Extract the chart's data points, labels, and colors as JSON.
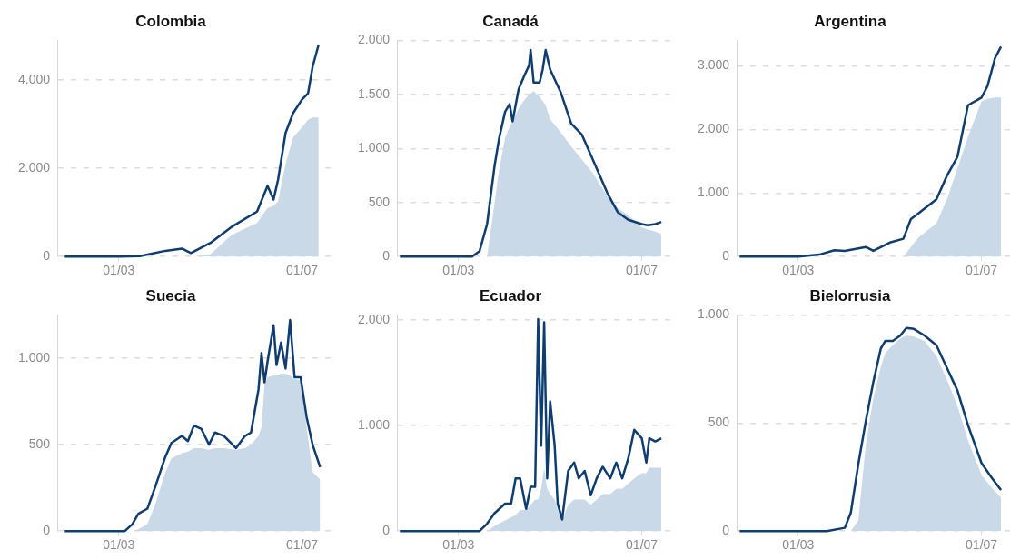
{
  "chart_data": [
    {
      "type": "line",
      "title": "Colombia",
      "x": [
        "--01-25",
        "--03-01",
        "--03-15",
        "--04-01",
        "--04-12",
        "--04-18",
        "--05-01",
        "--05-15",
        "--06-01",
        "--06-08",
        "--06-12",
        "--06-15",
        "--06-20",
        "--06-25",
        "--07-01",
        "--07-05",
        "--07-08",
        "--07-12"
      ],
      "series": [
        {
          "type": "area",
          "color": "#c9d9e8",
          "values": [
            0,
            0,
            0,
            0,
            0,
            0,
            50,
            490,
            760,
            1100,
            1150,
            1250,
            2100,
            2700,
            2930,
            3100,
            3150,
            3150
          ]
        },
        {
          "type": "line",
          "color": "#0f3d70",
          "values": [
            0,
            0,
            10,
            130,
            180,
            80,
            310,
            670,
            1020,
            1600,
            1290,
            1740,
            2800,
            3250,
            3560,
            3700,
            4300,
            4800
          ]
        }
      ],
      "xlim": [
        "--01-20",
        "--07-20"
      ],
      "xticks": [
        {
          "value": "--03-01",
          "label": "01/03"
        },
        {
          "value": "--07-01",
          "label": "01/07"
        }
      ],
      "ylim": [
        0,
        4900
      ],
      "yticks": [
        {
          "value": 0,
          "label": "0"
        },
        {
          "value": 2000,
          "label": "2.000"
        },
        {
          "value": 4000,
          "label": "4.000"
        }
      ],
      "grid": "y",
      "legend": false
    },
    {
      "type": "line",
      "title": "Canadá",
      "x": [
        "--01-22",
        "--03-10",
        "--03-15",
        "--03-20",
        "--03-25",
        "--03-28",
        "--04-01",
        "--04-04",
        "--04-06",
        "--04-10",
        "--04-14",
        "--04-17",
        "--04-18",
        "--04-20",
        "--04-24",
        "--04-26",
        "--04-28",
        "--05-01",
        "--05-08",
        "--05-15",
        "--05-22",
        "--05-29",
        "--06-08",
        "--06-15",
        "--06-22",
        "--07-01",
        "--07-05",
        "--07-10",
        "--07-14"
      ],
      "series": [
        {
          "type": "area",
          "color": "#c9d9e8",
          "values": [
            0,
            0,
            0,
            0,
            500,
            800,
            1100,
            1200,
            1250,
            1370,
            1450,
            1500,
            1510,
            1530,
            1480,
            1440,
            1400,
            1270,
            1150,
            1020,
            900,
            780,
            560,
            450,
            380,
            270,
            250,
            230,
            210
          ]
        },
        {
          "type": "line",
          "color": "#0f3d70",
          "values": [
            0,
            0,
            50,
            300,
            840,
            1090,
            1340,
            1410,
            1250,
            1550,
            1680,
            1770,
            1910,
            1610,
            1610,
            1730,
            1910,
            1730,
            1520,
            1230,
            1130,
            910,
            590,
            410,
            340,
            300,
            290,
            300,
            320
          ]
        }
      ],
      "xlim": [
        "--01-20",
        "--07-20"
      ],
      "xticks": [
        {
          "value": "--03-01",
          "label": "01/03"
        },
        {
          "value": "--07-01",
          "label": "01/07"
        }
      ],
      "ylim": [
        0,
        2000
      ],
      "yticks": [
        {
          "value": 0,
          "label": "0"
        },
        {
          "value": 500,
          "label": "500"
        },
        {
          "value": 1000,
          "label": "1.000"
        },
        {
          "value": 1500,
          "label": "1.500"
        },
        {
          "value": 2000,
          "label": "2.000"
        }
      ],
      "grid": "y",
      "legend": false
    },
    {
      "type": "line",
      "title": "Argentina",
      "x": [
        "--01-22",
        "--03-01",
        "--03-15",
        "--03-25",
        "--04-01",
        "--04-15",
        "--04-20",
        "--05-01",
        "--05-10",
        "--05-15",
        "--05-20",
        "--06-01",
        "--06-08",
        "--06-15",
        "--06-22",
        "--07-01",
        "--07-05",
        "--07-10",
        "--07-14"
      ],
      "series": [
        {
          "type": "area",
          "color": "#c9d9e8",
          "values": [
            0,
            0,
            0,
            0,
            0,
            0,
            0,
            0,
            0,
            150,
            300,
            520,
            900,
            1390,
            1880,
            2440,
            2480,
            2500,
            2500
          ]
        },
        {
          "type": "line",
          "color": "#0f3d70",
          "values": [
            0,
            0,
            30,
            100,
            90,
            150,
            90,
            220,
            280,
            590,
            680,
            900,
            1270,
            1570,
            2380,
            2500,
            2680,
            3120,
            3300
          ]
        }
      ],
      "xlim": [
        "--01-20",
        "--07-20"
      ],
      "xticks": [
        {
          "value": "--03-01",
          "label": "01/03"
        },
        {
          "value": "--07-01",
          "label": "01/07"
        }
      ],
      "ylim": [
        0,
        3400
      ],
      "yticks": [
        {
          "value": 0,
          "label": "0"
        },
        {
          "value": 1000,
          "label": "1.000"
        },
        {
          "value": 2000,
          "label": "2.000"
        },
        {
          "value": 3000,
          "label": "3.000"
        }
      ],
      "grid": "y",
      "legend": false
    },
    {
      "type": "line",
      "title": "Suecia",
      "x": [
        "--01-25",
        "--03-05",
        "--03-10",
        "--03-14",
        "--03-20",
        "--03-25",
        "--04-01",
        "--04-05",
        "--04-12",
        "--04-16",
        "--04-20",
        "--04-25",
        "--04-30",
        "--05-04",
        "--05-10",
        "--05-18",
        "--05-24",
        "--05-28",
        "--06-02",
        "--06-04",
        "--06-06",
        "--06-08",
        "--06-12",
        "--06-14",
        "--06-17",
        "--06-20",
        "--06-23",
        "--06-26",
        "--06-30",
        "--07-04",
        "--07-08",
        "--07-13"
      ],
      "series": [
        {
          "type": "area",
          "color": "#c9d9e8",
          "values": [
            0,
            0,
            0,
            10,
            40,
            150,
            340,
            420,
            450,
            460,
            480,
            480,
            470,
            480,
            480,
            470,
            480,
            500,
            550,
            600,
            850,
            890,
            900,
            900,
            910,
            910,
            900,
            880,
            870,
            600,
            340,
            300
          ]
        },
        {
          "type": "line",
          "color": "#0f3d70",
          "values": [
            0,
            0,
            40,
            100,
            130,
            250,
            430,
            510,
            550,
            520,
            610,
            590,
            500,
            570,
            550,
            480,
            550,
            570,
            820,
            1030,
            860,
            980,
            1190,
            960,
            1090,
            940,
            1220,
            890,
            890,
            660,
            500,
            370
          ]
        }
      ],
      "xlim": [
        "--01-20",
        "--07-20"
      ],
      "xticks": [
        {
          "value": "--03-01",
          "label": "01/03"
        },
        {
          "value": "--07-01",
          "label": "01/07"
        }
      ],
      "ylim": [
        0,
        1250
      ],
      "yticks": [
        {
          "value": 0,
          "label": "0"
        },
        {
          "value": 500,
          "label": "500"
        },
        {
          "value": 1000,
          "label": "1.000"
        }
      ],
      "grid": "y",
      "legend": false
    },
    {
      "type": "line",
      "title": "Ecuador",
      "x": [
        "--01-22",
        "--03-15",
        "--03-20",
        "--03-25",
        "--04-01",
        "--04-05",
        "--04-08",
        "--04-11",
        "--04-15",
        "--04-18",
        "--04-21",
        "--04-23",
        "--04-25",
        "--04-27",
        "--04-29",
        "--05-01",
        "--05-04",
        "--05-06",
        "--05-09",
        "--05-13",
        "--05-17",
        "--05-20",
        "--05-24",
        "--05-28",
        "--06-01",
        "--06-05",
        "--06-10",
        "--06-14",
        "--06-18",
        "--06-22",
        "--06-26",
        "--07-01",
        "--07-04",
        "--07-06",
        "--07-10",
        "--07-14"
      ],
      "series": [
        {
          "type": "area",
          "color": "#c9d9e8",
          "values": [
            0,
            0,
            0,
            50,
            100,
            130,
            150,
            200,
            200,
            250,
            300,
            300,
            400,
            600,
            400,
            350,
            300,
            200,
            100,
            250,
            300,
            300,
            300,
            250,
            300,
            350,
            350,
            400,
            400,
            450,
            500,
            550,
            550,
            600,
            600,
            600
          ]
        },
        {
          "type": "line",
          "color": "#0f3d70",
          "values": [
            0,
            0,
            70,
            170,
            260,
            260,
            500,
            500,
            210,
            420,
            420,
            2010,
            810,
            1980,
            500,
            1230,
            810,
            260,
            110,
            570,
            650,
            500,
            570,
            340,
            500,
            610,
            500,
            650,
            500,
            690,
            960,
            880,
            650,
            880,
            850,
            880
          ]
        }
      ],
      "xlim": [
        "--01-20",
        "--07-20"
      ],
      "xticks": [
        {
          "value": "--03-01",
          "label": "01/03"
        },
        {
          "value": "--07-01",
          "label": "01/07"
        }
      ],
      "ylim": [
        0,
        2050
      ],
      "yticks": [
        {
          "value": 0,
          "label": "0"
        },
        {
          "value": 1000,
          "label": "1.000"
        },
        {
          "value": 2000,
          "label": "2.000"
        }
      ],
      "grid": "y",
      "legend": false
    },
    {
      "type": "line",
      "title": "Bielorrusia",
      "x": [
        "--01-22",
        "--03-20",
        "--04-01",
        "--04-05",
        "--04-10",
        "--04-15",
        "--04-20",
        "--04-25",
        "--04-28",
        "--05-03",
        "--05-08",
        "--05-12",
        "--05-17",
        "--05-24",
        "--06-01",
        "--06-08",
        "--06-15",
        "--06-22",
        "--07-01",
        "--07-08",
        "--07-14"
      ],
      "series": [
        {
          "type": "area",
          "color": "#c9d9e8",
          "values": [
            0,
            0,
            0,
            0,
            50,
            400,
            615,
            760,
            825,
            860,
            890,
            905,
            900,
            880,
            810,
            700,
            580,
            420,
            260,
            200,
            155
          ]
        },
        {
          "type": "line",
          "color": "#0f3d70",
          "values": [
            0,
            0,
            15,
            85,
            310,
            510,
            690,
            845,
            880,
            880,
            905,
            940,
            935,
            905,
            860,
            755,
            650,
            490,
            315,
            245,
            190
          ]
        }
      ],
      "xlim": [
        "--01-20",
        "--07-20"
      ],
      "xticks": [
        {
          "value": "--03-01",
          "label": "01/03"
        },
        {
          "value": "--07-01",
          "label": "01/07"
        }
      ],
      "ylim": [
        0,
        1000
      ],
      "yticks": [
        {
          "value": 0,
          "label": "0"
        },
        {
          "value": 500,
          "label": "500"
        },
        {
          "value": 1000,
          "label": "1.000"
        }
      ],
      "grid": "y",
      "legend": false
    }
  ]
}
